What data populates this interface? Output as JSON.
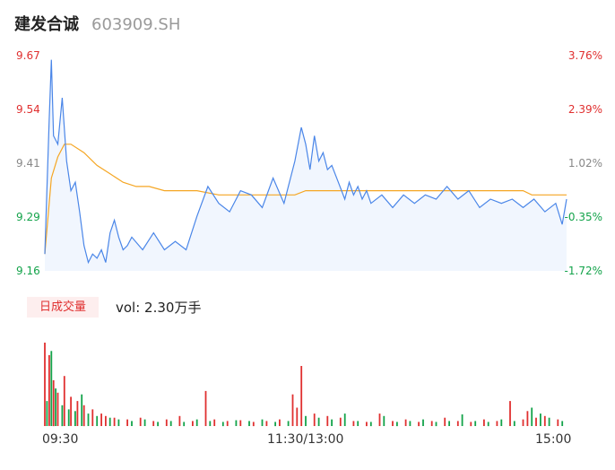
{
  "header": {
    "name": "建发合诚",
    "code": "603909.SH"
  },
  "colors": {
    "up": "#e03030",
    "down": "#13a34a",
    "neutral": "#888888",
    "price_line": "#4a86e8",
    "avg_line": "#f5a623",
    "area_fill": "#e8f0fd"
  },
  "volume": {
    "badge": "日成交量",
    "readout": "vol: 2.30万手"
  },
  "chart_data": {
    "type": "line",
    "title": "",
    "prev_close": 9.32,
    "price_axis": {
      "ticks": [
        "9.67",
        "9.54",
        "9.41",
        "9.29",
        "9.16"
      ],
      "tick_colors": [
        "#e03030",
        "#e03030",
        "#888888",
        "#13a34a",
        "#13a34a"
      ],
      "ylim": [
        9.16,
        9.67
      ]
    },
    "pct_axis": {
      "ticks": [
        "3.76%",
        "2.39%",
        "1.02%",
        "-0.35%",
        "-1.72%"
      ],
      "tick_colors": [
        "#e03030",
        "#e03030",
        "#888888",
        "#13a34a",
        "#13a34a"
      ]
    },
    "x_axis": {
      "ticks": [
        "09:30",
        "11:30/13:00",
        "15:00"
      ],
      "total_minutes": 240
    },
    "series": [
      {
        "key": "price",
        "minutes": [
          0,
          2,
          3,
          4,
          6,
          8,
          10,
          12,
          14,
          16,
          18,
          20,
          22,
          24,
          26,
          28,
          30,
          32,
          34,
          36,
          38,
          40,
          45,
          50,
          55,
          60,
          65,
          70,
          75,
          80,
          85,
          90,
          95,
          100,
          105,
          110,
          115,
          118,
          120,
          122,
          124,
          126,
          128,
          130,
          132,
          135,
          138,
          140,
          142,
          144,
          146,
          148,
          150,
          155,
          160,
          165,
          170,
          175,
          180,
          185,
          190,
          195,
          200,
          205,
          210,
          215,
          220,
          225,
          230,
          235,
          238,
          240
        ],
        "values": [
          9.2,
          9.52,
          9.66,
          9.48,
          9.46,
          9.57,
          9.42,
          9.35,
          9.37,
          9.3,
          9.22,
          9.18,
          9.2,
          9.19,
          9.21,
          9.18,
          9.25,
          9.28,
          9.24,
          9.21,
          9.22,
          9.24,
          9.21,
          9.25,
          9.21,
          9.23,
          9.21,
          9.29,
          9.36,
          9.32,
          9.3,
          9.35,
          9.34,
          9.31,
          9.38,
          9.32,
          9.42,
          9.5,
          9.46,
          9.4,
          9.48,
          9.42,
          9.44,
          9.4,
          9.41,
          9.37,
          9.33,
          9.37,
          9.34,
          9.36,
          9.33,
          9.35,
          9.32,
          9.34,
          9.31,
          9.34,
          9.32,
          9.34,
          9.33,
          9.36,
          9.33,
          9.35,
          9.31,
          9.33,
          9.32,
          9.33,
          9.31,
          9.33,
          9.3,
          9.32,
          9.27,
          9.33
        ]
      },
      {
        "key": "average",
        "minutes": [
          0,
          3,
          6,
          9,
          12,
          18,
          24,
          30,
          36,
          42,
          48,
          55,
          70,
          80,
          90,
          100,
          115,
          120,
          130,
          140,
          160,
          180,
          200,
          220,
          224,
          240
        ],
        "values": [
          9.2,
          9.38,
          9.43,
          9.46,
          9.46,
          9.44,
          9.41,
          9.39,
          9.37,
          9.36,
          9.36,
          9.35,
          9.35,
          9.34,
          9.34,
          9.34,
          9.34,
          9.35,
          9.35,
          9.35,
          9.35,
          9.35,
          9.35,
          9.35,
          9.34,
          9.34
        ]
      }
    ],
    "volume_bars": {
      "note_units": "relative height 0-1 of volume panel",
      "up_minutes": [
        0,
        2,
        4,
        6,
        9,
        12,
        15,
        18,
        22,
        26,
        28,
        32,
        38,
        44,
        50,
        56,
        62,
        68,
        74,
        78,
        84,
        90,
        96,
        102,
        108,
        114,
        116,
        118,
        124,
        130,
        136,
        142,
        148,
        154,
        160,
        166,
        172,
        178,
        184,
        190,
        196,
        202,
        208,
        214,
        220,
        222,
        226,
        230,
        236
      ],
      "up_values": [
        1.0,
        0.85,
        0.55,
        0.4,
        0.6,
        0.35,
        0.3,
        0.25,
        0.2,
        0.15,
        0.12,
        0.1,
        0.08,
        0.1,
        0.06,
        0.08,
        0.12,
        0.06,
        0.42,
        0.08,
        0.06,
        0.07,
        0.05,
        0.06,
        0.08,
        0.38,
        0.22,
        0.72,
        0.15,
        0.12,
        0.1,
        0.06,
        0.05,
        0.15,
        0.06,
        0.08,
        0.05,
        0.06,
        0.1,
        0.06,
        0.05,
        0.08,
        0.06,
        0.3,
        0.08,
        0.18,
        0.1,
        0.12,
        0.08
      ],
      "down_minutes": [
        1,
        3,
        5,
        8,
        11,
        14,
        17,
        20,
        24,
        30,
        34,
        40,
        46,
        52,
        58,
        64,
        70,
        76,
        82,
        88,
        94,
        100,
        106,
        112,
        120,
        126,
        132,
        138,
        144,
        150,
        156,
        162,
        168,
        174,
        180,
        186,
        192,
        198,
        204,
        210,
        216,
        224,
        228,
        232,
        238
      ],
      "down_values": [
        0.3,
        0.9,
        0.45,
        0.25,
        0.2,
        0.18,
        0.38,
        0.15,
        0.12,
        0.1,
        0.08,
        0.06,
        0.08,
        0.05,
        0.06,
        0.05,
        0.08,
        0.06,
        0.05,
        0.07,
        0.06,
        0.08,
        0.05,
        0.06,
        0.12,
        0.1,
        0.08,
        0.15,
        0.06,
        0.05,
        0.12,
        0.05,
        0.06,
        0.08,
        0.05,
        0.06,
        0.14,
        0.06,
        0.05,
        0.08,
        0.06,
        0.22,
        0.15,
        0.1,
        0.06
      ]
    }
  }
}
